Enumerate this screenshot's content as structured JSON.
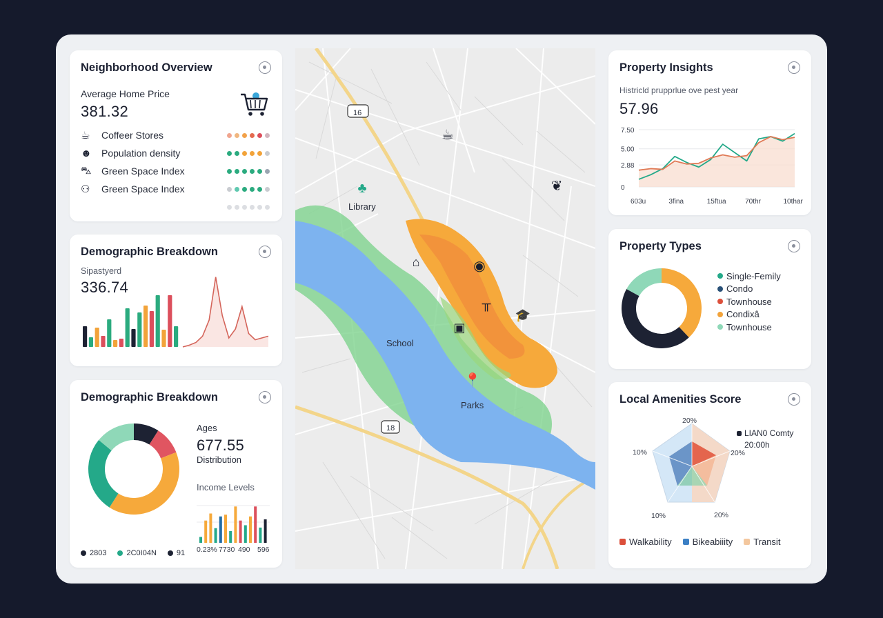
{
  "neighborhood": {
    "title": "Neighborhood Overview",
    "price_label": "Average Home Price",
    "price_value": "381.32",
    "cart_icon": "cart-icon",
    "rows": [
      {
        "label": "Coffeer Stores",
        "icon": "coffee-icon",
        "dots": [
          "#f0a58f",
          "#f0b780",
          "#f2a14a",
          "#e46b4f",
          "#dc4f5c",
          "#d2b6bf"
        ]
      },
      {
        "label": "Population density",
        "icon": "person-icon",
        "dots": [
          "#2bab7f",
          "#2bab7f",
          "#f2a33a",
          "#f2a33a",
          "#f2a33a",
          "#c9ccd1"
        ]
      },
      {
        "label": "Green Space Index",
        "icon": "car-icon",
        "dots": [
          "#2bab7f",
          "#2bab7f",
          "#2bab7f",
          "#2bab7f",
          "#2bab7f",
          "#9aa5b1"
        ]
      },
      {
        "label": "Green Space Index",
        "icon": "people-icon",
        "dots": [
          "#c9ccd1",
          "#5fc9b0",
          "#2bab7f",
          "#2bab7f",
          "#2bab7f",
          "#c9ccd1"
        ]
      },
      {
        "label": "",
        "icon": "",
        "dots": [
          "#dcdee2",
          "#dcdee2",
          "#dcdee2",
          "#dcdee2",
          "#dcdee2",
          "#dcdee2"
        ]
      }
    ]
  },
  "demographic1": {
    "title": "Demographic Breakdown",
    "sub_label": "Sipastyerd",
    "value": "336.74",
    "chart_data": {
      "type": "bar",
      "values": [
        30,
        14,
        28,
        16,
        40,
        10,
        12,
        56,
        26,
        50,
        60,
        52,
        75,
        25,
        75,
        30
      ],
      "colors": [
        "#1d2233",
        "#2bab7f",
        "#f2a33a",
        "#dc4f5c",
        "#2bab7f",
        "#f2a33a",
        "#dc4f5c",
        "#2bab7f",
        "#1d2233",
        "#2bab7f",
        "#f2a33a",
        "#dc4f5c",
        "#2bab7f",
        "#f2a33a",
        "#dc4f5c",
        "#2bab7f"
      ],
      "line": [
        0,
        2,
        5,
        12,
        30,
        78,
        35,
        10,
        20,
        45,
        15,
        8,
        10,
        12
      ]
    }
  },
  "demographic2": {
    "title": "Demographic Breakdown",
    "ages_label": "Ages",
    "ages_value": "677.55",
    "distribution_label": "Distribution",
    "income_label": "Income Levels",
    "chart_data": {
      "type": "pie",
      "slices": [
        {
          "value": 9,
          "color": "#1d2233"
        },
        {
          "value": 10,
          "color": "#e05561"
        },
        {
          "value": 40,
          "color": "#f6a93b"
        },
        {
          "value": 27,
          "color": "#24a989"
        },
        {
          "value": 14,
          "color": "#8fd8b8"
        }
      ]
    },
    "income_bars": {
      "values": [
        10,
        38,
        50,
        25,
        45,
        48,
        20,
        62,
        38,
        30,
        45,
        62,
        26,
        40
      ],
      "colors": [
        "#24a989",
        "#f6a93b",
        "#f6a93b",
        "#24a989",
        "#1f6ba5",
        "#f6a93b",
        "#24a989",
        "#f6a93b",
        "#dc4f5c",
        "#24a989",
        "#f6a93b",
        "#dc4f5c",
        "#24a989",
        "#1d2233"
      ],
      "ticks": [
        "0.23%",
        "7730",
        "490",
        "596"
      ]
    },
    "legend": [
      {
        "label": "2803",
        "color": "#1d2233"
      },
      {
        "label": "2C0I04N",
        "color": "#24a989"
      },
      {
        "label": "91",
        "color": "#1d2233"
      }
    ]
  },
  "map": {
    "labels": {
      "library": "Library",
      "school": "School",
      "parks": "Parks"
    },
    "route_shields": [
      "16",
      "18"
    ],
    "icons": [
      "coffee-icon",
      "leaf-icon",
      "tree-icon",
      "store-icon",
      "pin-icon",
      "bench-icon",
      "graduation-cap-icon",
      "book-icon",
      "location-pin-icon"
    ]
  },
  "insights": {
    "title": "Property Insights",
    "subtitle": "Histricld prupprlue ove pest year",
    "value": "57.96",
    "chart_data": {
      "type": "line",
      "y_ticks": [
        "7.50",
        "5.00",
        "2.88",
        "0"
      ],
      "x_ticks": [
        "603u",
        "3fina",
        "15ftua",
        "70thr",
        "10thar"
      ],
      "series": [
        {
          "color": "#24a989",
          "values": [
            1.0,
            1.6,
            2.4,
            4.0,
            3.2,
            2.6,
            3.6,
            5.6,
            4.5,
            3.4,
            6.3,
            6.6,
            6.0,
            7.0
          ]
        },
        {
          "color": "#e07a56",
          "values": [
            2.2,
            2.4,
            2.3,
            3.4,
            3.0,
            3.1,
            3.8,
            4.2,
            3.9,
            4.1,
            5.8,
            6.6,
            6.2,
            6.5
          ]
        }
      ]
    }
  },
  "types": {
    "title": "Property Types",
    "chart_data": {
      "type": "pie",
      "slices": [
        {
          "value": 38,
          "color": "#f6a93b"
        },
        {
          "value": 45,
          "color": "#1d2233"
        },
        {
          "value": 17,
          "color": "#8fd8b8"
        }
      ]
    },
    "legend": [
      {
        "label": "Single-Femily",
        "color": "#24a989"
      },
      {
        "label": "Condo",
        "color": "#2a5178"
      },
      {
        "label": "Townhouse",
        "color": "#dc4f3b"
      },
      {
        "label": "Condixâ",
        "color": "#f2a33a"
      },
      {
        "label": "Townhouse",
        "color": "#8fd8b8"
      }
    ]
  },
  "amenities": {
    "title": "Local Amenities Score",
    "chart_data": {
      "type": "radar",
      "axis_labels": [
        "20%",
        "20%",
        "20%",
        "10%",
        "10%"
      ],
      "callout": "LIAN0 Comty",
      "callout2": "20:00h"
    },
    "legend": [
      {
        "label": "Walkability",
        "color": "#dc4f3b"
      },
      {
        "label": "Bikeabiiity",
        "color": "#3b7fc4"
      },
      {
        "label": "Transit",
        "color": "#f3c79e"
      }
    ]
  }
}
